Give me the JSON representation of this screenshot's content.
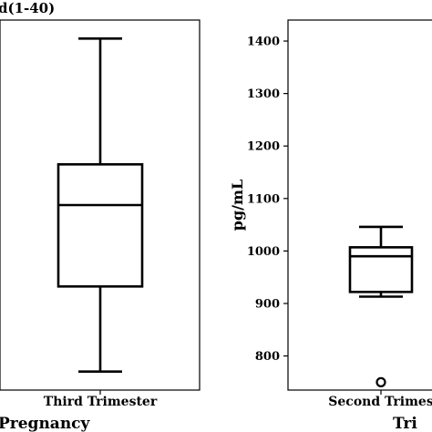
{
  "chart_data": [
    {
      "type": "box",
      "title": "d(1-40)",
      "xlabel": "Pregnancy",
      "ylabel": "",
      "categories": [
        "Third Trimester"
      ],
      "y_ticks_visible": false,
      "boxes": [
        {
          "category": "Third Trimester",
          "whisker_low": 5,
          "q1": 28,
          "median": 50,
          "q3": 61,
          "whisker_high": 95,
          "outliers": []
        }
      ],
      "ylim": [
        0,
        100
      ]
    },
    {
      "type": "box",
      "title": "",
      "xlabel": "Tri",
      "ylabel": "pg/mL",
      "categories": [
        "Second Trimes"
      ],
      "yticks": [
        800,
        900,
        1000,
        1100,
        1200,
        1300,
        1400
      ],
      "boxes": [
        {
          "category": "Second Trimes",
          "whisker_low": 913,
          "q1": 922,
          "median": 990,
          "q3": 1007,
          "whisker_high": 1046,
          "outliers": [
            750
          ]
        }
      ],
      "ylim": [
        735,
        1440
      ]
    }
  ]
}
